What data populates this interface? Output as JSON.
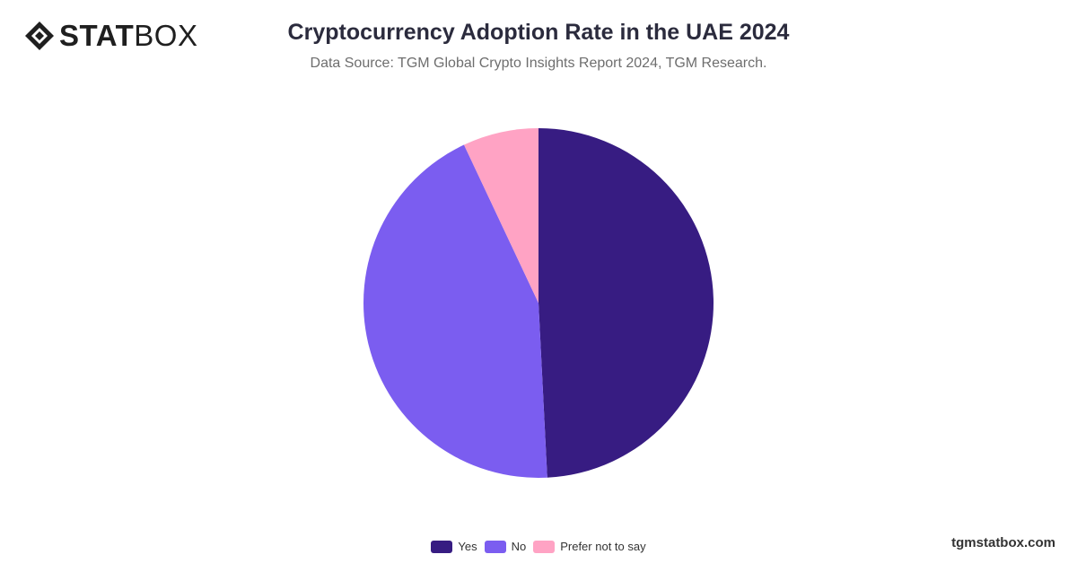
{
  "brand": {
    "logo_bold": "STAT",
    "logo_light": "BOX"
  },
  "title": "Cryptocurrency Adoption Rate in the UAE 2024",
  "subtitle": "Data Source: TGM Global Crypto Insights Report 2024, TGM Research.",
  "footer_url": "tgmstatbox.com",
  "chart_data": {
    "type": "pie",
    "title": "Cryptocurrency Adoption Rate in the UAE 2024",
    "categories": [
      "Yes",
      "No",
      "Prefer not to say"
    ],
    "values": [
      49.2,
      43.8,
      7.0
    ],
    "colors": [
      "#371c82",
      "#7b5df0",
      "#ffa3c4"
    ],
    "start": "top",
    "direction": "clockwise",
    "legend": "bottom-center"
  }
}
